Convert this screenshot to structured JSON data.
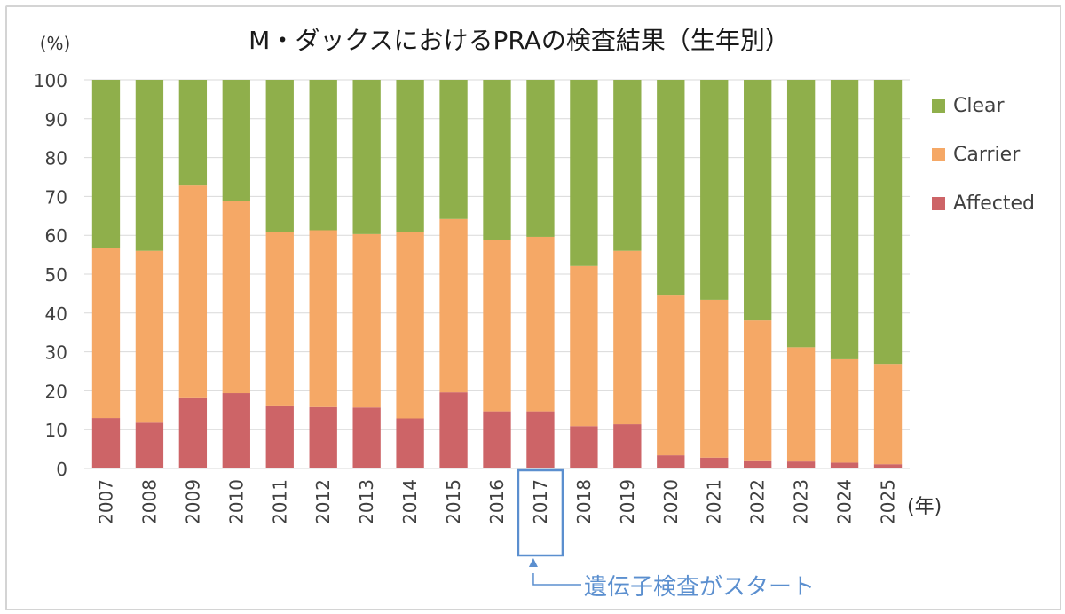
{
  "chart_data": {
    "type": "bar",
    "stacked": true,
    "title": "M・ダックスにおけるPRAの検査結果（生年別）",
    "ylabel": "(%)",
    "xlabel": "(年)",
    "ylim": [
      0,
      100
    ],
    "yticks": [
      0,
      10,
      20,
      30,
      40,
      50,
      60,
      70,
      80,
      90,
      100
    ],
    "grid": true,
    "legend_position": "right",
    "categories": [
      "2007",
      "2008",
      "2009",
      "2010",
      "2011",
      "2012",
      "2013",
      "2014",
      "2015",
      "2016",
      "2017",
      "2018",
      "2019",
      "2020",
      "2021",
      "2022",
      "2023",
      "2024",
      "2025"
    ],
    "series": [
      {
        "name": "Affected",
        "color": "#cd6467",
        "values": [
          13,
          11.8,
          18.3,
          19.4,
          16,
          15.8,
          15.7,
          12.9,
          19.6,
          14.7,
          14.7,
          10.9,
          11.4,
          3.4,
          2.8,
          2.1,
          1.8,
          1.5,
          1.1
        ]
      },
      {
        "name": "Carrier",
        "color": "#f5a866",
        "values": [
          43.8,
          44.2,
          54.5,
          49.4,
          44.8,
          45.5,
          44.6,
          48,
          44.6,
          44.1,
          44.9,
          41.2,
          44.6,
          41.1,
          40.6,
          36,
          29.4,
          26.6,
          25.8
        ]
      },
      {
        "name": "Clear",
        "color": "#8faf4b",
        "values": [
          43.2,
          44,
          27.2,
          31.2,
          39.2,
          38.7,
          39.7,
          39.1,
          35.8,
          41.2,
          40.4,
          47.9,
          44,
          55.5,
          56.6,
          61.9,
          68.8,
          71.9,
          73.1
        ]
      }
    ],
    "legend_order": [
      "Clear",
      "Carrier",
      "Affected"
    ],
    "annotation": {
      "category": "2017",
      "text": "遺伝子検査がスタート",
      "color": "#5b8fcf"
    }
  }
}
